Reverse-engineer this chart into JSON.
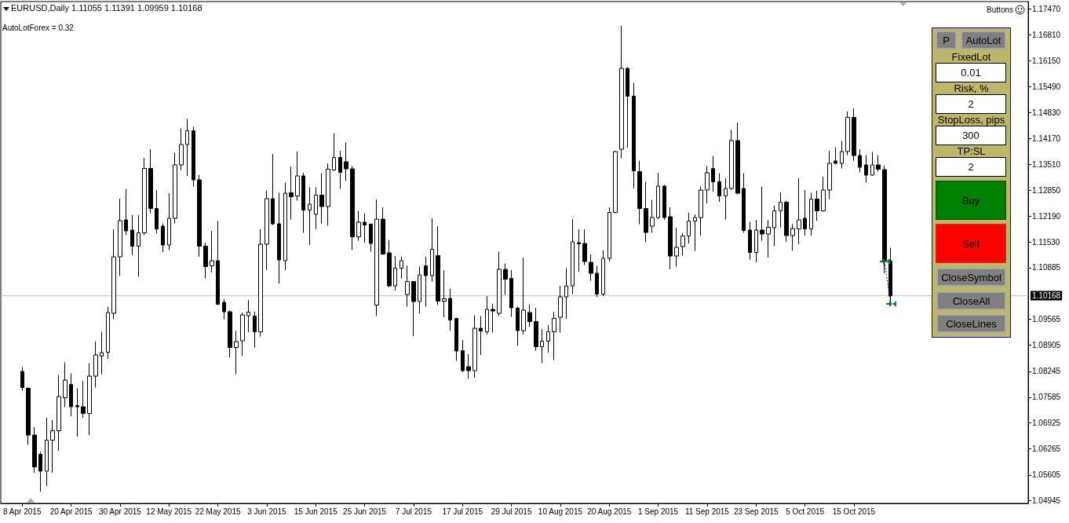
{
  "chart_data": [
    {
      "type": "candlestick",
      "title": "EURUSD,Daily 1.11055 1.11391 1.09959 1.10168",
      "annotations": [
        "AutoLotForex = 0.32",
        "Buttons"
      ],
      "categories": [
        "8 Apr 2015",
        null,
        null,
        null,
        null,
        null,
        null,
        null,
        "20 Apr 2015",
        null,
        null,
        null,
        null,
        null,
        null,
        null,
        "30 Apr 2015",
        null,
        null,
        null,
        null,
        null,
        null,
        null,
        "12 May 2015",
        null,
        null,
        null,
        null,
        null,
        null,
        null,
        "22 May 2015",
        null,
        null,
        null,
        null,
        null,
        null,
        null,
        "3 Jun 2015",
        null,
        null,
        null,
        null,
        null,
        null,
        null,
        "15 Jun 2015",
        null,
        null,
        null,
        null,
        null,
        null,
        null,
        "25 Jun 2015",
        null,
        null,
        null,
        null,
        null,
        null,
        null,
        "7 Jul 2015",
        null,
        null,
        null,
        null,
        null,
        null,
        null,
        "17 Jul 2015",
        null,
        null,
        null,
        null,
        null,
        null,
        null,
        "29 Jul 2015",
        null,
        null,
        null,
        null,
        null,
        null,
        null,
        "10 Aug 2015",
        null,
        null,
        null,
        null,
        null,
        null,
        null,
        "20 Aug 2015",
        null,
        null,
        null,
        null,
        null,
        null,
        null,
        "1 Sep 2015",
        null,
        null,
        null,
        null,
        null,
        null,
        null,
        "11 Sep 2015",
        null,
        null,
        null,
        null,
        null,
        null,
        null,
        "23 Sep 2015",
        null,
        null,
        null,
        null,
        null,
        null,
        null,
        "5 Oct 2015",
        null,
        null,
        null,
        null,
        null,
        null,
        null,
        "15 Oct 2015",
        null,
        null,
        null,
        null,
        null,
        null,
        null,
        null,
        null,
        null,
        null,
        null,
        null,
        null,
        null,
        null,
        null,
        null,
        null,
        null,
        null,
        null,
        null,
        null,
        null,
        null,
        null,
        null
      ],
      "ohlc": [
        [
          1.0824,
          1.0835,
          1.0775,
          1.0783
        ],
        [
          1.0781,
          1.0784,
          1.0637,
          1.0662
        ],
        [
          1.0662,
          1.0682,
          1.0566,
          1.0581
        ],
        [
          1.0613,
          1.062,
          1.0518,
          1.057
        ],
        [
          1.057,
          1.0706,
          1.0532,
          1.0649
        ],
        [
          1.0649,
          1.07,
          1.0566,
          1.0673
        ],
        [
          1.0673,
          1.0815,
          1.0622,
          1.076
        ],
        [
          1.0757,
          1.0847,
          1.0733,
          1.0802
        ],
        [
          1.0791,
          1.0819,
          1.071,
          1.0734
        ],
        [
          1.0737,
          1.0781,
          1.0658,
          1.0734
        ],
        [
          1.0734,
          1.08,
          1.0706,
          1.0717
        ],
        [
          1.0717,
          1.0845,
          1.0662,
          1.0812
        ],
        [
          1.0812,
          1.09,
          1.0783,
          1.0866
        ],
        [
          1.0863,
          1.0925,
          1.0817,
          1.0872
        ],
        [
          1.0873,
          1.0989,
          1.0856,
          1.0974
        ],
        [
          1.0972,
          1.1186,
          1.0957,
          1.1116
        ],
        [
          1.1116,
          1.1264,
          1.1067,
          1.1208
        ],
        [
          1.121,
          1.1289,
          1.1171,
          1.1182
        ],
        [
          1.1184,
          1.1222,
          1.112,
          1.1143
        ],
        [
          1.1143,
          1.1222,
          1.1065,
          1.1177
        ],
        [
          1.1177,
          1.1368,
          1.1171,
          1.1341
        ],
        [
          1.1341,
          1.139,
          1.1227,
          1.1239
        ],
        [
          1.1239,
          1.1286,
          1.1176,
          1.1187
        ],
        [
          1.1194,
          1.1201,
          1.1128,
          1.1146
        ],
        [
          1.1146,
          1.1278,
          1.1133,
          1.1214
        ],
        [
          1.1214,
          1.1381,
          1.1201,
          1.135
        ],
        [
          1.135,
          1.1443,
          1.1337,
          1.1402
        ],
        [
          1.1402,
          1.1467,
          1.1322,
          1.1437
        ],
        [
          1.1437,
          1.1447,
          1.1295,
          1.1312
        ],
        [
          1.1312,
          1.1324,
          1.1116,
          1.1143
        ],
        [
          1.1143,
          1.1152,
          1.1061,
          1.1091
        ],
        [
          1.1093,
          1.1182,
          1.1076,
          1.1106
        ],
        [
          1.1106,
          1.1207,
          1.0993,
          1.0995
        ],
        [
          1.1,
          1.1008,
          1.0957,
          1.0976
        ],
        [
          1.0976,
          1.0979,
          1.086,
          1.0885
        ],
        [
          1.0885,
          1.0927,
          1.0817,
          1.09
        ],
        [
          1.0902,
          1.0974,
          1.0864,
          1.0968
        ],
        [
          1.0966,
          1.1006,
          1.0924,
          1.0975
        ],
        [
          1.0965,
          1.0976,
          1.0885,
          1.0925
        ],
        [
          1.0925,
          1.1186,
          1.0913,
          1.1148
        ],
        [
          1.1148,
          1.1284,
          1.1082,
          1.1264
        ],
        [
          1.1264,
          1.1378,
          1.1197,
          1.12
        ],
        [
          1.12,
          1.1279,
          1.1048,
          1.1108
        ],
        [
          1.1106,
          1.1305,
          1.1082,
          1.1278
        ],
        [
          1.1279,
          1.1346,
          1.1211,
          1.1269
        ],
        [
          1.1271,
          1.1384,
          1.1259,
          1.1322
        ],
        [
          1.1322,
          1.133,
          1.1177,
          1.1235
        ],
        [
          1.1235,
          1.1293,
          1.1146,
          1.125
        ],
        [
          1.1224,
          1.1293,
          1.1186,
          1.1273
        ],
        [
          1.1273,
          1.1329,
          1.1201,
          1.1244
        ],
        [
          1.1244,
          1.1354,
          1.1195,
          1.1339
        ],
        [
          1.1337,
          1.143,
          1.1335,
          1.1369
        ],
        [
          1.1369,
          1.1386,
          1.1289,
          1.1331
        ],
        [
          1.1358,
          1.1407,
          1.1309,
          1.134
        ],
        [
          1.134,
          1.1347,
          1.1133,
          1.1167
        ],
        [
          1.1167,
          1.1233,
          1.1157,
          1.1204
        ],
        [
          1.1204,
          1.1227,
          1.1152,
          1.1197
        ],
        [
          1.1199,
          1.1201,
          1.1129,
          1.115
        ],
        [
          1.0993,
          1.1262,
          1.0965,
          1.1212
        ],
        [
          1.1212,
          1.1242,
          1.1121,
          1.1123
        ],
        [
          1.1126,
          1.1159,
          1.1038,
          1.1042
        ],
        [
          1.1042,
          1.1118,
          1.103,
          1.1087
        ],
        [
          1.1087,
          1.1116,
          1.1061,
          1.1106
        ],
        [
          1.102,
          1.1093,
          1.0989,
          1.1053
        ],
        [
          1.1053,
          1.1054,
          1.0914,
          1.1002
        ],
        [
          1.1002,
          1.1091,
          1.0972,
          1.107
        ],
        [
          1.1093,
          1.1116,
          1.0989,
          1.1068
        ],
        [
          1.1068,
          1.1214,
          1.1053,
          1.1135
        ],
        [
          1.1119,
          1.1194,
          1.0993,
          1.1003
        ],
        [
          1.1003,
          1.1082,
          1.0962,
          1.1009
        ],
        [
          1.101,
          1.1035,
          1.0928,
          1.0955
        ],
        [
          1.0959,
          1.0961,
          1.0851,
          1.0876
        ],
        [
          1.0877,
          1.0904,
          1.0823,
          1.0826
        ],
        [
          1.0836,
          1.0868,
          1.0806,
          1.0826
        ],
        [
          1.0826,
          1.0967,
          1.0808,
          1.0934
        ],
        [
          1.0934,
          1.0965,
          1.0866,
          1.0927
        ],
        [
          1.0925,
          1.1016,
          1.0918,
          1.0982
        ],
        [
          1.0982,
          1.0996,
          1.0923,
          1.0978
        ],
        [
          1.0972,
          1.1129,
          1.0965,
          1.1084
        ],
        [
          1.1084,
          1.1099,
          1.1019,
          1.1059
        ],
        [
          1.1061,
          1.1082,
          1.0963,
          1.0986
        ],
        [
          1.0985,
          1.0989,
          1.089,
          1.0928
        ],
        [
          1.0928,
          1.1114,
          1.0918,
          1.098
        ],
        [
          1.0974,
          1.0995,
          1.0938,
          1.0951
        ],
        [
          1.0951,
          1.0986,
          1.0877,
          1.0887
        ],
        [
          1.0887,
          1.0932,
          1.0845,
          1.0901
        ],
        [
          1.0901,
          1.0942,
          1.0872,
          1.0925
        ],
        [
          1.0925,
          1.0976,
          1.0853,
          1.0959
        ],
        [
          1.0962,
          1.1042,
          1.0923,
          1.1014
        ],
        [
          1.1014,
          1.1087,
          1.0958,
          1.1042
        ],
        [
          1.1042,
          1.1212,
          1.1021,
          1.1154
        ],
        [
          1.1152,
          1.1186,
          1.1078,
          1.1149
        ],
        [
          1.115,
          1.1186,
          1.1095,
          1.1104
        ],
        [
          1.1102,
          1.1122,
          1.1055,
          1.1074
        ],
        [
          1.1074,
          1.1093,
          1.1014,
          1.1021
        ],
        [
          1.1021,
          1.1132,
          1.1016,
          1.1112
        ],
        [
          1.1112,
          1.1242,
          1.1104,
          1.1229
        ],
        [
          1.1229,
          1.1386,
          1.1227,
          1.1384
        ],
        [
          1.139,
          1.1704,
          1.1367,
          1.1596
        ],
        [
          1.1596,
          1.1599,
          1.1394,
          1.1525
        ],
        [
          1.1525,
          1.1559,
          1.129,
          1.1335
        ],
        [
          1.1333,
          1.1361,
          1.1199,
          1.1239
        ],
        [
          1.1239,
          1.1307,
          1.1153,
          1.1178
        ],
        [
          1.1194,
          1.1261,
          1.1177,
          1.1216
        ],
        [
          1.1216,
          1.133,
          1.1212,
          1.1296
        ],
        [
          1.1296,
          1.1299,
          1.121,
          1.1216
        ],
        [
          1.1218,
          1.1242,
          1.1084,
          1.1118
        ],
        [
          1.1118,
          1.119,
          1.1091,
          1.114
        ],
        [
          1.1142,
          1.1177,
          1.1119,
          1.1169
        ],
        [
          1.1169,
          1.1228,
          1.115,
          1.1207
        ],
        [
          1.1207,
          1.1224,
          1.1131,
          1.1216
        ],
        [
          1.1216,
          1.1295,
          1.117,
          1.1286
        ],
        [
          1.1286,
          1.1347,
          1.1252,
          1.133
        ],
        [
          1.1341,
          1.1373,
          1.1282,
          1.1307
        ],
        [
          1.1307,
          1.1329,
          1.1256,
          1.1271
        ],
        [
          1.1271,
          1.1316,
          1.1211,
          1.129
        ],
        [
          1.129,
          1.1439,
          1.1286,
          1.1412
        ],
        [
          1.1412,
          1.1458,
          1.1275,
          1.1278
        ],
        [
          1.129,
          1.1329,
          1.1177,
          1.1183
        ],
        [
          1.1184,
          1.1205,
          1.1109,
          1.1127
        ],
        [
          1.1127,
          1.121,
          1.1102,
          1.1184
        ],
        [
          1.1184,
          1.1295,
          1.1157,
          1.1174
        ],
        [
          1.1174,
          1.121,
          1.1114,
          1.1191
        ],
        [
          1.119,
          1.1246,
          1.1143,
          1.1233
        ],
        [
          1.1233,
          1.128,
          1.1191,
          1.1255
        ],
        [
          1.1255,
          1.1259,
          1.1154,
          1.117
        ],
        [
          1.117,
          1.12,
          1.1132,
          1.1188
        ],
        [
          1.1187,
          1.1316,
          1.1148,
          1.121
        ],
        [
          1.1214,
          1.1286,
          1.117,
          1.1187
        ],
        [
          1.1187,
          1.1279,
          1.117,
          1.1263
        ],
        [
          1.1263,
          1.1284,
          1.1208,
          1.1233
        ],
        [
          1.1233,
          1.132,
          1.1231,
          1.1286
        ],
        [
          1.1286,
          1.1386,
          1.1263,
          1.1354
        ],
        [
          1.136,
          1.1395,
          1.1352,
          1.1354
        ],
        [
          1.1354,
          1.1411,
          1.1341,
          1.1384
        ],
        [
          1.1384,
          1.1486,
          1.1375,
          1.1471
        ],
        [
          1.1471,
          1.1494,
          1.136,
          1.1374
        ],
        [
          1.1374,
          1.139,
          1.1331,
          1.1344
        ],
        [
          1.135,
          1.1375,
          1.1305,
          1.1324
        ],
        [
          1.1324,
          1.1383,
          1.1323,
          1.135
        ],
        [
          1.135,
          1.1375,
          1.1333,
          1.1339
        ],
        [
          1.1338,
          1.1348,
          1.1074,
          1.1105
        ],
        [
          1.11055,
          1.11391,
          1.09959,
          1.10168
        ],
        null,
        null,
        null,
        null,
        null,
        null,
        null,
        null,
        null,
        null,
        null,
        null,
        null,
        null,
        null,
        null,
        null,
        null,
        null,
        null,
        null,
        null
      ],
      "color": "#000000",
      "ylim": [
        1.0488,
        1.1766
      ],
      "yticks": [
        {
          "value": 1.04945,
          "label": "1.04945"
        },
        {
          "value": 1.05605,
          "label": "1.05605"
        },
        {
          "value": 1.06265,
          "label": "1.06265"
        },
        {
          "value": 1.06925,
          "label": "1.06925"
        },
        {
          "value": 1.07585,
          "label": "1.07585"
        },
        {
          "value": 1.08245,
          "label": "1.08245"
        },
        {
          "value": 1.08905,
          "label": "1.08905"
        },
        {
          "value": 1.09565,
          "label": "1.09565"
        },
        {
          "value": 1.10885,
          "label": "1.10885"
        },
        {
          "value": 1.1153,
          "label": "1.11530"
        },
        {
          "value": 1.1219,
          "label": "1.12190"
        },
        {
          "value": 1.1285,
          "label": "1.12850"
        },
        {
          "value": 1.1351,
          "label": "1.13510"
        },
        {
          "value": 1.1417,
          "label": "1.14170"
        },
        {
          "value": 1.1483,
          "label": "1.14830"
        },
        {
          "value": 1.1549,
          "label": "1.15490"
        },
        {
          "value": 1.1615,
          "label": "1.16150"
        },
        {
          "value": 1.1681,
          "label": "1.16810"
        },
        {
          "value": 1.1747,
          "label": "1.17470"
        }
      ],
      "ref_lines": [
        {
          "axis": "y",
          "value": 1.10168,
          "label": "1.10168",
          "color": "#c0c0c0"
        }
      ]
    },
    {
      "type": "other",
      "annotations": [
        "P",
        "AutoLot",
        "FixedLot",
        "0.01",
        "Risk, %",
        "2",
        "StopLoss, pips",
        "300",
        "TP:SL",
        "2",
        "Buy",
        "Sell",
        "CloseSymbol",
        "CloseAll",
        "CloseLines"
      ]
    }
  ]
}
